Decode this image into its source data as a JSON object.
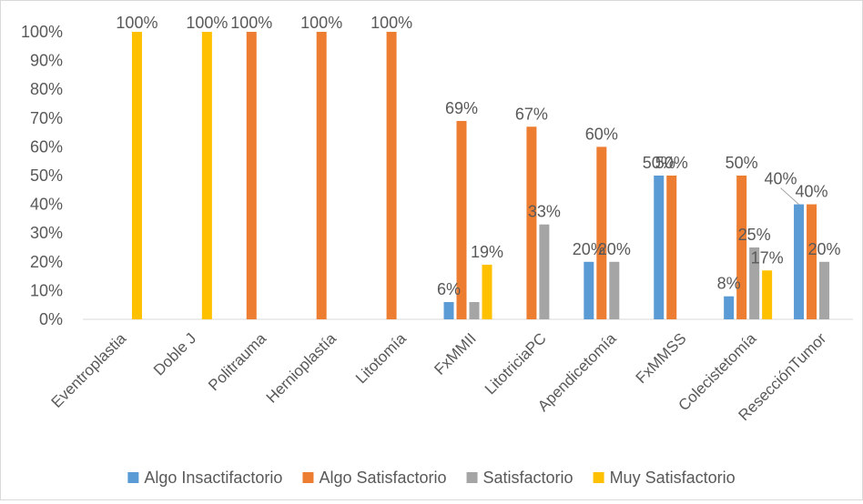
{
  "chart_data": {
    "type": "bar",
    "categories": [
      "Eventroplastia",
      "Doble J",
      "Politrauma",
      "Hernioplastía",
      "Litotomía",
      "FxMMII",
      "LitotriciaPC",
      "Apendicetomía",
      "FxMMSS",
      "Colecistetomía",
      "ResecciónTumor"
    ],
    "series": [
      {
        "name": "Algo Insactifactorio",
        "color": "#5b9bd5",
        "values": [
          0,
          0,
          0,
          0,
          0,
          6,
          0,
          20,
          50,
          8,
          40
        ]
      },
      {
        "name": "Algo Satisfactorio",
        "color": "#ed7d31",
        "values": [
          0,
          0,
          100,
          100,
          100,
          69,
          67,
          60,
          50,
          50,
          40
        ]
      },
      {
        "name": "Satisfactorio",
        "color": "#a5a5a5",
        "values": [
          0,
          0,
          0,
          0,
          0,
          6,
          33,
          20,
          0,
          25,
          20
        ]
      },
      {
        "name": "Muy Satisfactorio",
        "color": "#ffc000",
        "values": [
          100,
          100,
          0,
          0,
          0,
          19,
          0,
          0,
          0,
          17,
          0
        ]
      }
    ],
    "data_labels": [
      {
        "category": "Eventroplastia",
        "series": "Muy Satisfactorio",
        "text": "100%"
      },
      {
        "category": "Doble J",
        "series": "Muy Satisfactorio",
        "text": "100%"
      },
      {
        "category": "Politrauma",
        "series": "Algo Satisfactorio",
        "text": "100%"
      },
      {
        "category": "Hernioplastía",
        "series": "Algo Satisfactorio",
        "text": "100%"
      },
      {
        "category": "Litotomía",
        "series": "Algo Satisfactorio",
        "text": "100%"
      },
      {
        "category": "FxMMII",
        "series": "Algo Insactifactorio",
        "text": "6%"
      },
      {
        "category": "FxMMII",
        "series": "Algo Satisfactorio",
        "text": "69%"
      },
      {
        "category": "FxMMII",
        "series": "Muy Satisfactorio",
        "text": "19%"
      },
      {
        "category": "LitotriciaPC",
        "series": "Algo Satisfactorio",
        "text": "67%"
      },
      {
        "category": "LitotriciaPC",
        "series": "Satisfactorio",
        "text": "33%"
      },
      {
        "category": "Apendicetomía",
        "series": "Algo Insactifactorio",
        "text": "20%"
      },
      {
        "category": "Apendicetomía",
        "series": "Algo Satisfactorio",
        "text": "60%"
      },
      {
        "category": "Apendicetomía",
        "series": "Satisfactorio",
        "text": "20%"
      },
      {
        "category": "FxMMSS",
        "series": "Algo Insactifactorio",
        "text": "50%"
      },
      {
        "category": "FxMMSS",
        "series": "Algo Satisfactorio",
        "text": "50%"
      },
      {
        "category": "Colecistetomía",
        "series": "Algo Insactifactorio",
        "text": "8%"
      },
      {
        "category": "Colecistetomía",
        "series": "Algo Satisfactorio",
        "text": "50%"
      },
      {
        "category": "Colecistetomía",
        "series": "Satisfactorio",
        "text": "25%"
      },
      {
        "category": "Colecistetomía",
        "series": "Muy Satisfactorio",
        "text": "17%"
      },
      {
        "category": "ResecciónTumor",
        "series": "Algo Insactifactorio",
        "text": "40%"
      },
      {
        "category": "ResecciónTumor",
        "series": "Algo Satisfactorio",
        "text": "40%"
      },
      {
        "category": "ResecciónTumor",
        "series": "Satisfactorio",
        "text": "20%"
      }
    ],
    "y_ticks": [
      "0%",
      "10%",
      "20%",
      "30%",
      "40%",
      "50%",
      "60%",
      "70%",
      "80%",
      "90%",
      "100%"
    ],
    "ylim": [
      0,
      100
    ],
    "title": "",
    "xlabel": "",
    "ylabel": "",
    "grid": false,
    "legend_position": "bottom"
  }
}
